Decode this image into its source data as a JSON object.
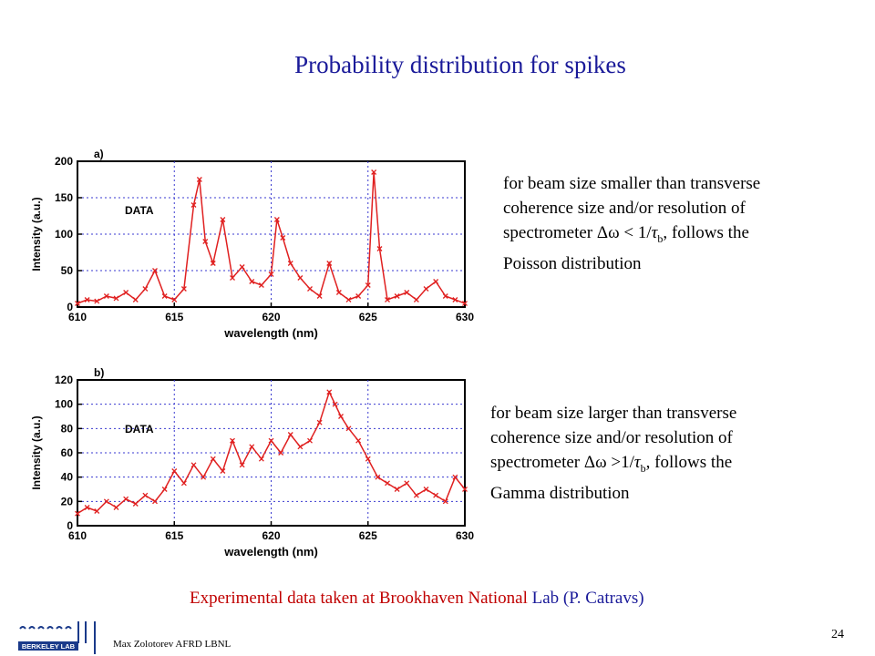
{
  "slide": {
    "title": "Probability distribution  for spikes",
    "page_number": "24",
    "author": "Max Zolotorev AFRD LBNL",
    "logo_text": "BERKELEY LAB",
    "footer": {
      "part1": "Experimental data taken at Brookhaven National",
      "part2": " Lab (P. Catravs)"
    },
    "desc_a": {
      "l1": "for beam size smaller than transverse",
      "l2": "coherence size and/or resolution of",
      "l3a": "spectrometer ",
      "l3b": "Δω",
      "l3c": " < 1/",
      "l3d": "τ",
      "l3e": "b",
      "l3f": ", follows the",
      "l4": "Poisson distribution"
    },
    "desc_b": {
      "l1": "for beam size larger than transverse",
      "l2": "coherence size and/or resolution of",
      "l3a": "spectrometer ",
      "l3b": "Δω",
      "l3c": " >1/",
      "l3d": "τ",
      "l3e": "b",
      "l3f": ", follows the",
      "l4": "Gamma distribution"
    }
  },
  "chart_data": [
    {
      "type": "line",
      "panel_label": "a)",
      "annotation": "DATA",
      "xlabel": "wavelength (nm)",
      "ylabel": "Intensity (a.u.)",
      "xlim": [
        610,
        630
      ],
      "ylim": [
        0,
        200
      ],
      "xticks": [
        610,
        615,
        620,
        625,
        630
      ],
      "yticks": [
        0,
        50,
        100,
        150,
        200
      ],
      "grid": true,
      "color": "#e02020",
      "series": [
        {
          "x": [
            610.0,
            610.5,
            611.0,
            611.5,
            612.0,
            612.5,
            613.0,
            613.5,
            614.0,
            614.5,
            615.0,
            615.5,
            616.0,
            616.3,
            616.6,
            617.0,
            617.5,
            618.0,
            618.5,
            619.0,
            619.5,
            620.0,
            620.3,
            620.6,
            621.0,
            621.5,
            622.0,
            622.5,
            623.0,
            623.5,
            624.0,
            624.5,
            625.0,
            625.3,
            625.6,
            626.0,
            626.5,
            627.0,
            627.5,
            628.0,
            628.5,
            629.0,
            629.5,
            630.0
          ],
          "y": [
            5,
            10,
            8,
            15,
            12,
            20,
            10,
            25,
            50,
            15,
            10,
            25,
            140,
            175,
            90,
            60,
            120,
            40,
            55,
            35,
            30,
            45,
            120,
            95,
            60,
            40,
            25,
            15,
            60,
            20,
            10,
            15,
            30,
            185,
            80,
            10,
            15,
            20,
            10,
            25,
            35,
            15,
            10,
            5
          ]
        }
      ]
    },
    {
      "type": "line",
      "panel_label": "b)",
      "annotation": "DATA",
      "xlabel": "wavelength (nm)",
      "ylabel": "Intensity (a.u.)",
      "xlim": [
        610,
        630
      ],
      "ylim": [
        0,
        120
      ],
      "xticks": [
        610,
        615,
        620,
        625,
        630
      ],
      "yticks": [
        0,
        20,
        40,
        60,
        80,
        100,
        120
      ],
      "grid": true,
      "color": "#e02020",
      "series": [
        {
          "x": [
            610.0,
            610.5,
            611.0,
            611.5,
            612.0,
            612.5,
            613.0,
            613.5,
            614.0,
            614.5,
            615.0,
            615.5,
            616.0,
            616.5,
            617.0,
            617.5,
            618.0,
            618.5,
            619.0,
            619.5,
            620.0,
            620.5,
            621.0,
            621.5,
            622.0,
            622.5,
            623.0,
            623.3,
            623.6,
            624.0,
            624.5,
            625.0,
            625.5,
            626.0,
            626.5,
            627.0,
            627.5,
            628.0,
            628.5,
            629.0,
            629.5,
            630.0
          ],
          "y": [
            10,
            15,
            12,
            20,
            15,
            22,
            18,
            25,
            20,
            30,
            45,
            35,
            50,
            40,
            55,
            45,
            70,
            50,
            65,
            55,
            70,
            60,
            75,
            65,
            70,
            85,
            110,
            100,
            90,
            80,
            70,
            55,
            40,
            35,
            30,
            35,
            25,
            30,
            25,
            20,
            40,
            30
          ]
        }
      ]
    }
  ]
}
